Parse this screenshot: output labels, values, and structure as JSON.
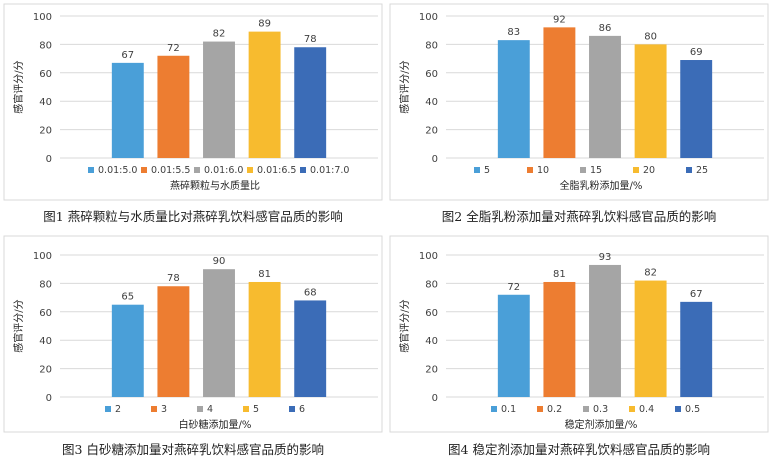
{
  "colors": {
    "blue": "#4A9FD8",
    "orange": "#ED7D31",
    "gray": "#A5A5A5",
    "yellow": "#F7BB2F",
    "darkblue": "#3B6CB7",
    "grid": "#D9D9D9",
    "axis_text": "#404040"
  },
  "chart_data": [
    {
      "type": "bar",
      "categories": [
        "0.01:5.0",
        "0.01:5.5",
        "0.01:6.0",
        "0.01:6.5",
        "0.01:7.0"
      ],
      "values": [
        67,
        72,
        82,
        89,
        78
      ],
      "ylabel": "感官评分/分",
      "xlabel": "燕碎颗粒与水质量比",
      "ylim": [
        0,
        100
      ],
      "yticks": [
        0,
        20,
        40,
        60,
        80,
        100
      ],
      "grid": true,
      "legend_placement": "bottom",
      "caption": "图1 燕碎颗粒与水质量比对燕碎乳饮料感官品质的影响"
    },
    {
      "type": "bar",
      "categories": [
        "5",
        "10",
        "15",
        "20",
        "25"
      ],
      "values": [
        83,
        92,
        86,
        80,
        69
      ],
      "ylabel": "感官评分/分",
      "xlabel": "全脂乳粉添加量/%",
      "ylim": [
        0,
        100
      ],
      "yticks": [
        0,
        20,
        40,
        60,
        80,
        100
      ],
      "grid": true,
      "legend_placement": "bottom",
      "caption": "图2 全脂乳粉添加量对燕碎乳饮料感官品质的影响"
    },
    {
      "type": "bar",
      "categories": [
        "2",
        "3",
        "4",
        "5",
        "6"
      ],
      "values": [
        65,
        78,
        90,
        81,
        68
      ],
      "ylabel": "感官评分/分",
      "xlabel": "白砂糖添加量/%",
      "ylim": [
        0,
        100
      ],
      "yticks": [
        0,
        20,
        40,
        60,
        80,
        100
      ],
      "grid": true,
      "legend_placement": "bottom",
      "caption": "图3 白砂糖添加量对燕碎乳饮料感官品质的影响"
    },
    {
      "type": "bar",
      "categories": [
        "0.1",
        "0.2",
        "0.3",
        "0.4",
        "0.5"
      ],
      "values": [
        72,
        81,
        93,
        82,
        67
      ],
      "ylabel": "感官评分/分",
      "xlabel": "稳定剂添加量/%",
      "ylim": [
        0,
        100
      ],
      "yticks": [
        0,
        20,
        40,
        60,
        80,
        100
      ],
      "grid": true,
      "legend_placement": "bottom",
      "caption": "图4 稳定剂添加量对燕碎乳饮料感官品质的影响"
    }
  ]
}
